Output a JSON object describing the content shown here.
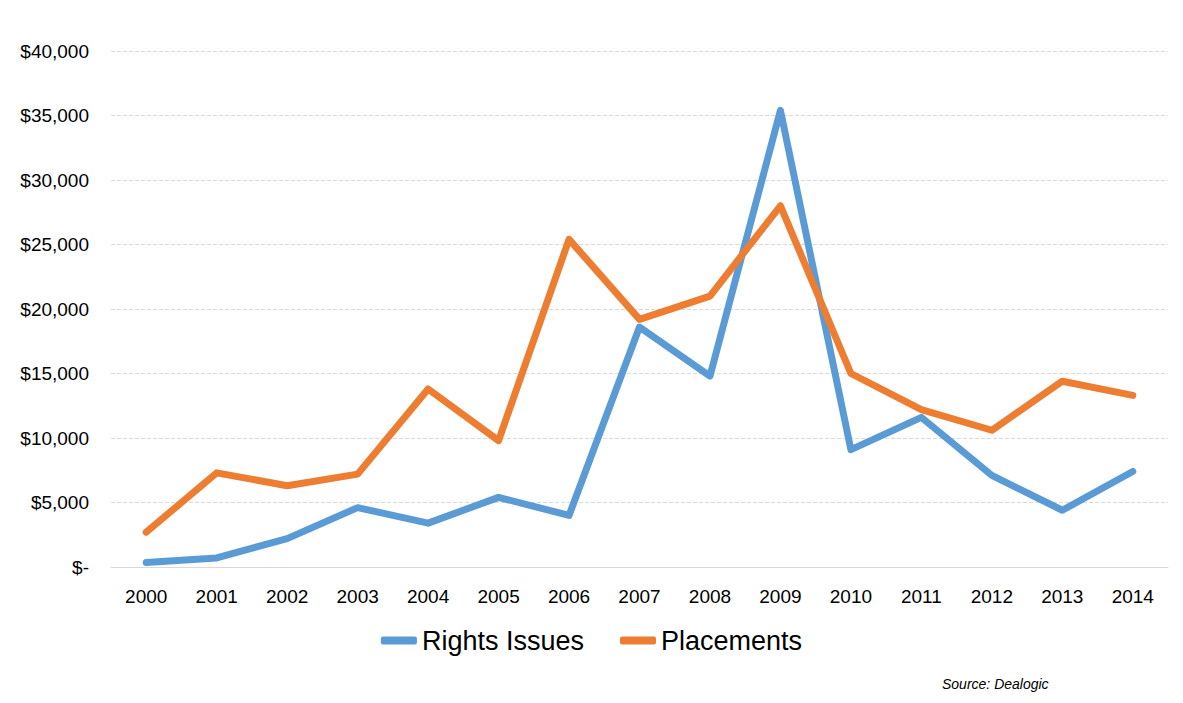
{
  "chart_data": {
    "type": "line",
    "categories": [
      "2000",
      "2001",
      "2002",
      "2003",
      "2004",
      "2005",
      "2006",
      "2007",
      "2008",
      "2009",
      "2010",
      "2011",
      "2012",
      "2013",
      "2014"
    ],
    "series": [
      {
        "name": "Rights Issues",
        "color": "#5B9BD5",
        "values": [
          350,
          700,
          2200,
          4600,
          3400,
          5400,
          4000,
          18600,
          14800,
          35400,
          9100,
          11600,
          7100,
          4400,
          7400
        ]
      },
      {
        "name": "Placements",
        "color": "#ED7D31",
        "values": [
          2700,
          7300,
          6300,
          7200,
          13800,
          9800,
          25400,
          19200,
          21000,
          28000,
          15000,
          12200,
          10600,
          14400,
          13300
        ]
      }
    ],
    "ylim": [
      0,
      40000
    ],
    "yticks": [
      {
        "value": 0,
        "label": "$-"
      },
      {
        "value": 5000,
        "label": "$5,000"
      },
      {
        "value": 10000,
        "label": "$10,000"
      },
      {
        "value": 15000,
        "label": "$15,000"
      },
      {
        "value": 20000,
        "label": "$20,000"
      },
      {
        "value": 25000,
        "label": "$25,000"
      },
      {
        "value": 30000,
        "label": "$30,000"
      },
      {
        "value": 35000,
        "label": "$35,000"
      },
      {
        "value": 40000,
        "label": "$40,000"
      }
    ],
    "grid": true,
    "legend": "bottom",
    "annotations": [
      "Source: Dealogic"
    ]
  }
}
